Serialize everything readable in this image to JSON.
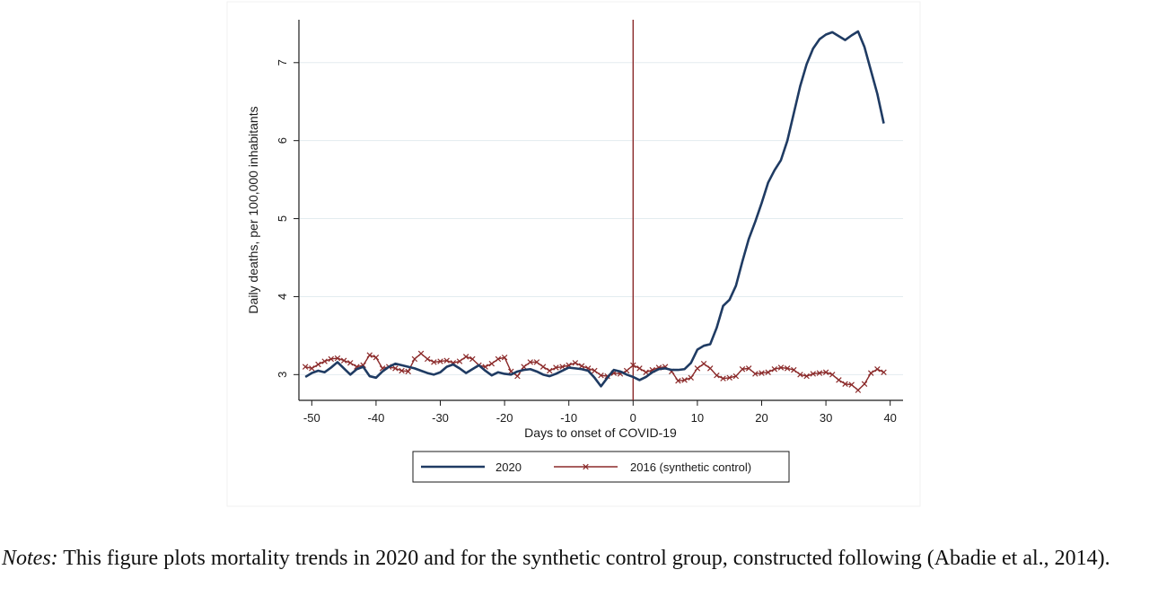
{
  "chart_data": {
    "type": "line",
    "xlabel": "Days to onset of COVID-19",
    "ylabel": "Daily deaths, per 100,000 inhabitants",
    "xlim": [
      -52,
      42
    ],
    "ylim": [
      2.67,
      7.55
    ],
    "xticks": [
      -50,
      -40,
      -30,
      -20,
      -10,
      0,
      10,
      20,
      30,
      40
    ],
    "yticks": [
      3,
      4,
      5,
      6,
      7
    ],
    "grid": "horizontal",
    "reference_line": {
      "x": 0,
      "color": "#8b2a2a"
    },
    "legend": {
      "position": "bottom",
      "boxed": true
    },
    "series": [
      {
        "name": "2020",
        "color": "#1f3b63",
        "marker": "none",
        "x": [
          -51,
          -50,
          -49,
          -48,
          -47,
          -46,
          -45,
          -44,
          -43,
          -42,
          -41,
          -40,
          -39,
          -38,
          -37,
          -36,
          -35,
          -34,
          -33,
          -32,
          -31,
          -30,
          -29,
          -28,
          -27,
          -26,
          -25,
          -24,
          -23,
          -22,
          -21,
          -20,
          -19,
          -18,
          -17,
          -16,
          -15,
          -14,
          -13,
          -12,
          -11,
          -10,
          -9,
          -8,
          -7,
          -6,
          -5,
          -4,
          -3,
          -2,
          -1,
          0,
          1,
          2,
          3,
          4,
          5,
          6,
          7,
          8,
          9,
          10,
          11,
          12,
          13,
          14,
          15,
          16,
          17,
          18,
          19,
          20,
          21,
          22,
          23,
          24,
          25,
          26,
          27,
          28,
          29,
          30,
          31,
          32,
          33,
          34,
          35,
          36,
          37,
          38,
          39
        ],
        "values": [
          2.97,
          3.02,
          3.05,
          3.03,
          3.09,
          3.16,
          3.08,
          3.0,
          3.07,
          3.1,
          2.98,
          2.96,
          3.04,
          3.1,
          3.14,
          3.12,
          3.1,
          3.08,
          3.05,
          3.02,
          3.0,
          3.03,
          3.1,
          3.13,
          3.08,
          3.02,
          3.07,
          3.12,
          3.05,
          2.99,
          3.03,
          3.01,
          3.0,
          3.04,
          3.06,
          3.07,
          3.04,
          3.0,
          2.98,
          3.01,
          3.05,
          3.09,
          3.08,
          3.07,
          3.05,
          2.96,
          2.85,
          2.96,
          3.06,
          3.04,
          3.0,
          2.97,
          2.93,
          2.97,
          3.03,
          3.07,
          3.08,
          3.06,
          3.06,
          3.07,
          3.15,
          3.32,
          3.37,
          3.39,
          3.6,
          3.88,
          3.96,
          4.14,
          4.45,
          4.74,
          4.96,
          5.2,
          5.46,
          5.62,
          5.75,
          6.0,
          6.35,
          6.7,
          6.98,
          7.18,
          7.3,
          7.36,
          7.39,
          7.34,
          7.29,
          7.35,
          7.4,
          7.2,
          6.9,
          6.6,
          6.22
        ]
      },
      {
        "name": "2016 (synthetic control)",
        "color": "#8b2a2a",
        "marker": "x",
        "x": [
          -51,
          -50,
          -49,
          -48,
          -47,
          -46,
          -45,
          -44,
          -43,
          -42,
          -41,
          -40,
          -39,
          -38,
          -37,
          -36,
          -35,
          -34,
          -33,
          -32,
          -31,
          -30,
          -29,
          -28,
          -27,
          -26,
          -25,
          -24,
          -23,
          -22,
          -21,
          -20,
          -19,
          -18,
          -17,
          -16,
          -15,
          -14,
          -13,
          -12,
          -11,
          -10,
          -9,
          -8,
          -7,
          -6,
          -5,
          -4,
          -3,
          -2,
          -1,
          0,
          1,
          2,
          3,
          4,
          5,
          6,
          7,
          8,
          9,
          10,
          11,
          12,
          13,
          14,
          15,
          16,
          17,
          18,
          19,
          20,
          21,
          22,
          23,
          24,
          25,
          26,
          27,
          28,
          29,
          30,
          31,
          32,
          33,
          34,
          35,
          36,
          37,
          38,
          39
        ],
        "values": [
          3.1,
          3.08,
          3.13,
          3.17,
          3.2,
          3.21,
          3.18,
          3.15,
          3.1,
          3.12,
          3.25,
          3.22,
          3.08,
          3.1,
          3.08,
          3.05,
          3.04,
          3.2,
          3.27,
          3.2,
          3.16,
          3.17,
          3.18,
          3.15,
          3.17,
          3.23,
          3.2,
          3.12,
          3.1,
          3.14,
          3.2,
          3.22,
          3.04,
          2.98,
          3.1,
          3.16,
          3.16,
          3.1,
          3.05,
          3.09,
          3.1,
          3.12,
          3.15,
          3.11,
          3.08,
          3.05,
          2.99,
          2.98,
          3.02,
          3.01,
          3.05,
          3.12,
          3.08,
          3.03,
          3.06,
          3.09,
          3.1,
          3.04,
          2.92,
          2.93,
          2.96,
          3.08,
          3.14,
          3.08,
          2.99,
          2.95,
          2.96,
          2.98,
          3.07,
          3.08,
          3.01,
          3.02,
          3.03,
          3.07,
          3.09,
          3.08,
          3.06,
          3.0,
          2.98,
          3.01,
          3.02,
          3.03,
          3.0,
          2.93,
          2.88,
          2.87,
          2.8,
          2.88,
          3.02,
          3.07,
          3.03
        ]
      }
    ]
  },
  "notes": {
    "label": "Notes:",
    "text": " This figure plots mortality trends in 2020 and for the synthetic control group, constructed following (Abadie et al., 2014)."
  }
}
